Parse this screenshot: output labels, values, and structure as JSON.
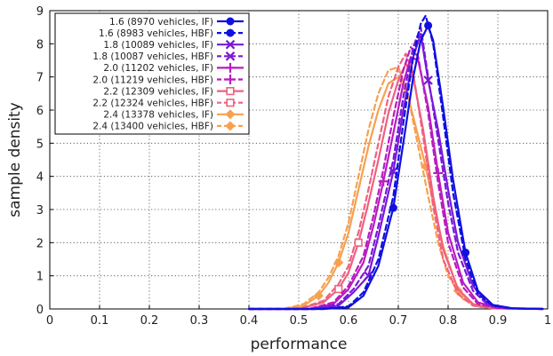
{
  "chart_data": {
    "type": "line",
    "title": "",
    "xlabel": "performance",
    "ylabel": "sample density",
    "xlim": [
      0,
      1
    ],
    "ylim": [
      0,
      9
    ],
    "xticks": [
      "0",
      "0.1",
      "0.2",
      "0.3",
      "0.4",
      "0.5",
      "0.6",
      "0.7",
      "0.8",
      "0.9",
      "1"
    ],
    "yticks": [
      "0",
      "1",
      "2",
      "3",
      "4",
      "5",
      "6",
      "7",
      "8",
      "9"
    ],
    "grid": true,
    "legend_position": "top-left",
    "series": [
      {
        "name": "1.6 (8970 vehicles, IF)",
        "color": "#1010e0",
        "dash": false,
        "marker": "circle",
        "points": [
          [
            0.4,
            0
          ],
          [
            0.55,
            0
          ],
          [
            0.6,
            0.05
          ],
          [
            0.63,
            0.4
          ],
          [
            0.66,
            1.3
          ],
          [
            0.69,
            3.05
          ],
          [
            0.71,
            5.0
          ],
          [
            0.73,
            7.0
          ],
          [
            0.745,
            8.1
          ],
          [
            0.76,
            8.55
          ],
          [
            0.77,
            8.1
          ],
          [
            0.79,
            6.1
          ],
          [
            0.81,
            3.9
          ],
          [
            0.835,
            1.7
          ],
          [
            0.86,
            0.55
          ],
          [
            0.89,
            0.12
          ],
          [
            0.93,
            0.02
          ],
          [
            0.99,
            0
          ]
        ],
        "markers": [
          [
            0.69,
            3.05
          ],
          [
            0.76,
            8.55
          ],
          [
            0.835,
            1.7
          ]
        ]
      },
      {
        "name": "1.6 (8983 vehicles, HBF)",
        "color": "#1010e0",
        "dash": true,
        "marker": "circle",
        "points": [
          [
            0.4,
            0
          ],
          [
            0.55,
            0
          ],
          [
            0.6,
            0.08
          ],
          [
            0.63,
            0.5
          ],
          [
            0.66,
            1.5
          ],
          [
            0.69,
            3.4
          ],
          [
            0.71,
            5.6
          ],
          [
            0.73,
            7.6
          ],
          [
            0.745,
            8.6
          ],
          [
            0.755,
            8.85
          ],
          [
            0.77,
            8.0
          ],
          [
            0.79,
            5.8
          ],
          [
            0.81,
            3.5
          ],
          [
            0.835,
            1.5
          ],
          [
            0.86,
            0.45
          ],
          [
            0.89,
            0.1
          ],
          [
            0.93,
            0.02
          ],
          [
            0.99,
            0
          ]
        ],
        "markers": []
      },
      {
        "name": "1.8 (10089 vehicles, IF)",
        "color": "#7a18d8",
        "dash": false,
        "marker": "x",
        "points": [
          [
            0.4,
            0
          ],
          [
            0.53,
            0
          ],
          [
            0.58,
            0.1
          ],
          [
            0.61,
            0.5
          ],
          [
            0.64,
            1.0
          ],
          [
            0.66,
            2.2
          ],
          [
            0.69,
            4.15
          ],
          [
            0.71,
            6.0
          ],
          [
            0.73,
            7.6
          ],
          [
            0.745,
            8.3
          ],
          [
            0.76,
            6.9
          ],
          [
            0.78,
            5.4
          ],
          [
            0.8,
            3.6
          ],
          [
            0.82,
            2.0
          ],
          [
            0.85,
            0.7
          ],
          [
            0.88,
            0.15
          ],
          [
            0.92,
            0.02
          ],
          [
            0.99,
            0
          ]
        ],
        "markers": [
          [
            0.64,
            1.0
          ],
          [
            0.69,
            4.15
          ],
          [
            0.76,
            6.9
          ]
        ]
      },
      {
        "name": "1.8 (10087 vehicles, HBF)",
        "color": "#7a18d8",
        "dash": true,
        "marker": "x",
        "points": [
          [
            0.4,
            0
          ],
          [
            0.53,
            0
          ],
          [
            0.58,
            0.15
          ],
          [
            0.61,
            0.6
          ],
          [
            0.64,
            1.3
          ],
          [
            0.66,
            2.5
          ],
          [
            0.69,
            4.5
          ],
          [
            0.71,
            6.4
          ],
          [
            0.73,
            7.9
          ],
          [
            0.745,
            8.5
          ],
          [
            0.76,
            7.0
          ],
          [
            0.78,
            5.1
          ],
          [
            0.8,
            3.2
          ],
          [
            0.82,
            1.7
          ],
          [
            0.85,
            0.55
          ],
          [
            0.88,
            0.12
          ],
          [
            0.92,
            0.02
          ],
          [
            0.99,
            0
          ]
        ],
        "markers": []
      },
      {
        "name": "2.0 (11202 vehicles, IF)",
        "color": "#b81cc2",
        "dash": false,
        "marker": "plus",
        "points": [
          [
            0.4,
            0
          ],
          [
            0.52,
            0
          ],
          [
            0.57,
            0.15
          ],
          [
            0.6,
            0.6
          ],
          [
            0.63,
            1.4
          ],
          [
            0.65,
            2.5
          ],
          [
            0.67,
            3.85
          ],
          [
            0.69,
            5.3
          ],
          [
            0.71,
            6.8
          ],
          [
            0.725,
            7.6
          ],
          [
            0.74,
            7.5
          ],
          [
            0.76,
            6.1
          ],
          [
            0.78,
            4.1
          ],
          [
            0.8,
            2.3
          ],
          [
            0.83,
            0.8
          ],
          [
            0.86,
            0.2
          ],
          [
            0.9,
            0.03
          ],
          [
            0.99,
            0
          ]
        ],
        "markers": [
          [
            0.67,
            3.85
          ],
          [
            0.78,
            4.1
          ]
        ]
      },
      {
        "name": "2.0 (11219 vehicles, HBF)",
        "color": "#b81cc2",
        "dash": true,
        "marker": "plus",
        "points": [
          [
            0.4,
            0
          ],
          [
            0.52,
            0
          ],
          [
            0.57,
            0.2
          ],
          [
            0.6,
            0.7
          ],
          [
            0.63,
            1.6
          ],
          [
            0.65,
            2.8
          ],
          [
            0.67,
            4.2
          ],
          [
            0.69,
            5.8
          ],
          [
            0.71,
            7.2
          ],
          [
            0.725,
            7.9
          ],
          [
            0.74,
            7.6
          ],
          [
            0.76,
            5.9
          ],
          [
            0.78,
            3.8
          ],
          [
            0.8,
            2.0
          ],
          [
            0.83,
            0.65
          ],
          [
            0.86,
            0.15
          ],
          [
            0.9,
            0.02
          ],
          [
            0.99,
            0
          ]
        ],
        "markers": []
      },
      {
        "name": "2.2 (12309 vehicles, IF)",
        "color": "#f06080",
        "dash": false,
        "marker": "square",
        "points": [
          [
            0.4,
            0
          ],
          [
            0.5,
            0
          ],
          [
            0.55,
            0.2
          ],
          [
            0.58,
            0.6
          ],
          [
            0.6,
            1.1
          ],
          [
            0.62,
            2.0
          ],
          [
            0.64,
            3.2
          ],
          [
            0.66,
            4.5
          ],
          [
            0.68,
            5.9
          ],
          [
            0.7,
            6.9
          ],
          [
            0.715,
            7.4
          ],
          [
            0.73,
            7.0
          ],
          [
            0.75,
            5.4
          ],
          [
            0.77,
            3.4
          ],
          [
            0.79,
            1.8
          ],
          [
            0.82,
            0.6
          ],
          [
            0.85,
            0.15
          ],
          [
            0.89,
            0.02
          ],
          [
            0.99,
            0
          ]
        ],
        "markers": [
          [
            0.58,
            0.6
          ],
          [
            0.62,
            2.0
          ]
        ]
      },
      {
        "name": "2.2 (12324 vehicles, HBF)",
        "color": "#f06080",
        "dash": true,
        "marker": "square",
        "points": [
          [
            0.4,
            0
          ],
          [
            0.5,
            0
          ],
          [
            0.55,
            0.25
          ],
          [
            0.58,
            0.75
          ],
          [
            0.6,
            1.3
          ],
          [
            0.62,
            2.3
          ],
          [
            0.64,
            3.6
          ],
          [
            0.66,
            5.0
          ],
          [
            0.68,
            6.4
          ],
          [
            0.7,
            7.3
          ],
          [
            0.715,
            7.7
          ],
          [
            0.73,
            7.1
          ],
          [
            0.75,
            5.2
          ],
          [
            0.77,
            3.1
          ],
          [
            0.79,
            1.5
          ],
          [
            0.82,
            0.45
          ],
          [
            0.85,
            0.1
          ],
          [
            0.89,
            0.02
          ],
          [
            0.99,
            0
          ]
        ],
        "markers": []
      },
      {
        "name": "2.4 (13378 vehicles, IF)",
        "color": "#f7a050",
        "dash": false,
        "marker": "diamond",
        "points": [
          [
            0.4,
            0
          ],
          [
            0.47,
            0
          ],
          [
            0.51,
            0.1
          ],
          [
            0.54,
            0.4
          ],
          [
            0.56,
            0.8
          ],
          [
            0.58,
            1.4
          ],
          [
            0.6,
            2.3
          ],
          [
            0.62,
            3.6
          ],
          [
            0.64,
            4.9
          ],
          [
            0.66,
            6.0
          ],
          [
            0.68,
            6.8
          ],
          [
            0.7,
            7.0
          ],
          [
            0.72,
            6.4
          ],
          [
            0.74,
            5.2
          ],
          [
            0.755,
            4.3
          ],
          [
            0.77,
            3.2
          ],
          [
            0.79,
            1.9
          ],
          [
            0.82,
            0.55
          ],
          [
            0.85,
            0.12
          ],
          [
            0.89,
            0.02
          ],
          [
            0.99,
            0
          ]
        ],
        "markers": [
          [
            0.54,
            0.4
          ],
          [
            0.58,
            1.4
          ],
          [
            0.755,
            4.3
          ],
          [
            0.82,
            0.55
          ]
        ]
      },
      {
        "name": "2.4 (13400 vehicles, HBF)",
        "color": "#f7a050",
        "dash": true,
        "marker": "diamond",
        "points": [
          [
            0.4,
            0
          ],
          [
            0.47,
            0
          ],
          [
            0.51,
            0.15
          ],
          [
            0.54,
            0.5
          ],
          [
            0.56,
            0.95
          ],
          [
            0.58,
            1.6
          ],
          [
            0.6,
            2.6
          ],
          [
            0.62,
            4.0
          ],
          [
            0.64,
            5.4
          ],
          [
            0.66,
            6.5
          ],
          [
            0.68,
            7.2
          ],
          [
            0.7,
            7.3
          ],
          [
            0.72,
            6.4
          ],
          [
            0.74,
            4.9
          ],
          [
            0.76,
            3.4
          ],
          [
            0.78,
            2.0
          ],
          [
            0.8,
            1.0
          ],
          [
            0.83,
            0.3
          ],
          [
            0.86,
            0.07
          ],
          [
            0.9,
            0.01
          ],
          [
            0.99,
            0
          ]
        ],
        "markers": []
      }
    ]
  }
}
